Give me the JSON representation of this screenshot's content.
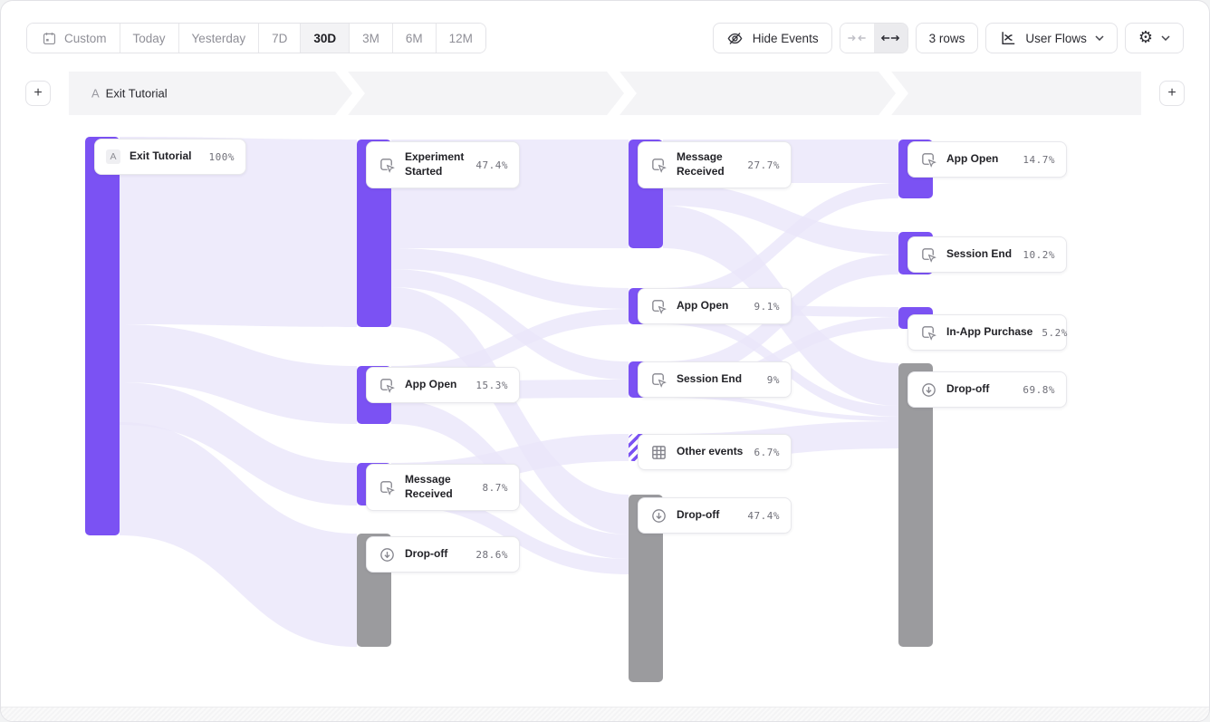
{
  "toolbar": {
    "date_ranges": [
      {
        "label": "Custom",
        "selected": false,
        "icon": "calendar-icon"
      },
      {
        "label": "Today",
        "selected": false
      },
      {
        "label": "Yesterday",
        "selected": false
      },
      {
        "label": "7D",
        "selected": false
      },
      {
        "label": "30D",
        "selected": true
      },
      {
        "label": "3M",
        "selected": false
      },
      {
        "label": "6M",
        "selected": false
      },
      {
        "label": "12M",
        "selected": false
      }
    ],
    "hide_events_label": "Hide Events",
    "rows_label": "3 rows",
    "view_label": "User Flows",
    "icons": [
      "calendar-icon",
      "eye-off-icon",
      "collapse-columns-icon",
      "expand-columns-icon",
      "user-flows-chart-icon",
      "gear-icon",
      "chevron-down-icon"
    ]
  },
  "flow_header": {
    "prefix": "A",
    "label": "Exit Tutorial",
    "add_step_symbol": "+"
  },
  "chart_data": {
    "type": "sankey",
    "unit": "percent of users",
    "colors": {
      "event": "#7b52f3",
      "dropoff": "#9b9b9e",
      "link": "#eae6fa",
      "other": "hatched-purple"
    },
    "columns": [
      {
        "step": 1,
        "nodes": [
          {
            "label": "Exit Tutorial",
            "value": 100,
            "value_label": "100%",
            "kind": "event",
            "badge": "A"
          }
        ]
      },
      {
        "step": 2,
        "nodes": [
          {
            "label": "Experiment Started",
            "value": 47.4,
            "value_label": "47.4%",
            "kind": "event"
          },
          {
            "label": "App Open",
            "value": 15.3,
            "value_label": "15.3%",
            "kind": "event"
          },
          {
            "label": "Message Received",
            "value": 8.7,
            "value_label": "8.7%",
            "kind": "event"
          },
          {
            "label": "Drop-off",
            "value": 28.6,
            "value_label": "28.6%",
            "kind": "dropoff"
          }
        ]
      },
      {
        "step": 3,
        "nodes": [
          {
            "label": "Message Received",
            "value": 27.7,
            "value_label": "27.7%",
            "kind": "event"
          },
          {
            "label": "App Open",
            "value": 9.1,
            "value_label": "9.1%",
            "kind": "event"
          },
          {
            "label": "Session End",
            "value": 9,
            "value_label": "9%",
            "kind": "event"
          },
          {
            "label": "Other events",
            "value": 6.7,
            "value_label": "6.7%",
            "kind": "other"
          },
          {
            "label": "Drop-off",
            "value": 47.4,
            "value_label": "47.4%",
            "kind": "dropoff"
          }
        ]
      },
      {
        "step": 4,
        "nodes": [
          {
            "label": "App Open",
            "value": 14.7,
            "value_label": "14.7%",
            "kind": "event"
          },
          {
            "label": "Session End",
            "value": 10.2,
            "value_label": "10.2%",
            "kind": "event"
          },
          {
            "label": "In-App Purchase",
            "value": 5.2,
            "value_label": "5.2%",
            "kind": "event"
          },
          {
            "label": "Drop-off",
            "value": 69.8,
            "value_label": "69.8%",
            "kind": "dropoff"
          }
        ]
      }
    ],
    "links": [
      {
        "from": [
          1,
          "Exit Tutorial"
        ],
        "to": [
          2,
          "Experiment Started"
        ]
      },
      {
        "from": [
          1,
          "Exit Tutorial"
        ],
        "to": [
          2,
          "App Open"
        ]
      },
      {
        "from": [
          1,
          "Exit Tutorial"
        ],
        "to": [
          2,
          "Message Received"
        ]
      },
      {
        "from": [
          1,
          "Exit Tutorial"
        ],
        "to": [
          2,
          "Drop-off"
        ]
      },
      {
        "from": [
          2,
          "Experiment Started"
        ],
        "to": [
          3,
          "Message Received"
        ]
      },
      {
        "from": [
          2,
          "Experiment Started"
        ],
        "to": [
          3,
          "App Open"
        ]
      },
      {
        "from": [
          2,
          "Experiment Started"
        ],
        "to": [
          3,
          "Session End"
        ]
      },
      {
        "from": [
          2,
          "Experiment Started"
        ],
        "to": [
          3,
          "Drop-off"
        ]
      },
      {
        "from": [
          2,
          "App Open"
        ],
        "to": [
          3,
          "App Open"
        ]
      },
      {
        "from": [
          2,
          "App Open"
        ],
        "to": [
          3,
          "Session End"
        ]
      },
      {
        "from": [
          2,
          "App Open"
        ],
        "to": [
          3,
          "Drop-off"
        ]
      },
      {
        "from": [
          2,
          "Message Received"
        ],
        "to": [
          3,
          "Other events"
        ]
      },
      {
        "from": [
          2,
          "Message Received"
        ],
        "to": [
          3,
          "Drop-off"
        ]
      },
      {
        "from": [
          3,
          "Message Received"
        ],
        "to": [
          4,
          "App Open"
        ]
      },
      {
        "from": [
          3,
          "Message Received"
        ],
        "to": [
          4,
          "Session End"
        ]
      },
      {
        "from": [
          3,
          "Message Received"
        ],
        "to": [
          4,
          "Drop-off"
        ]
      },
      {
        "from": [
          3,
          "App Open"
        ],
        "to": [
          4,
          "App Open"
        ]
      },
      {
        "from": [
          3,
          "App Open"
        ],
        "to": [
          4,
          "In-App Purchase"
        ]
      },
      {
        "from": [
          3,
          "App Open"
        ],
        "to": [
          4,
          "Drop-off"
        ]
      },
      {
        "from": [
          3,
          "Session End"
        ],
        "to": [
          4,
          "Session End"
        ]
      },
      {
        "from": [
          3,
          "Session End"
        ],
        "to": [
          4,
          "In-App Purchase"
        ]
      },
      {
        "from": [
          3,
          "Session End"
        ],
        "to": [
          4,
          "Drop-off"
        ]
      },
      {
        "from": [
          3,
          "Other events"
        ],
        "to": [
          4,
          "Drop-off"
        ]
      }
    ]
  }
}
